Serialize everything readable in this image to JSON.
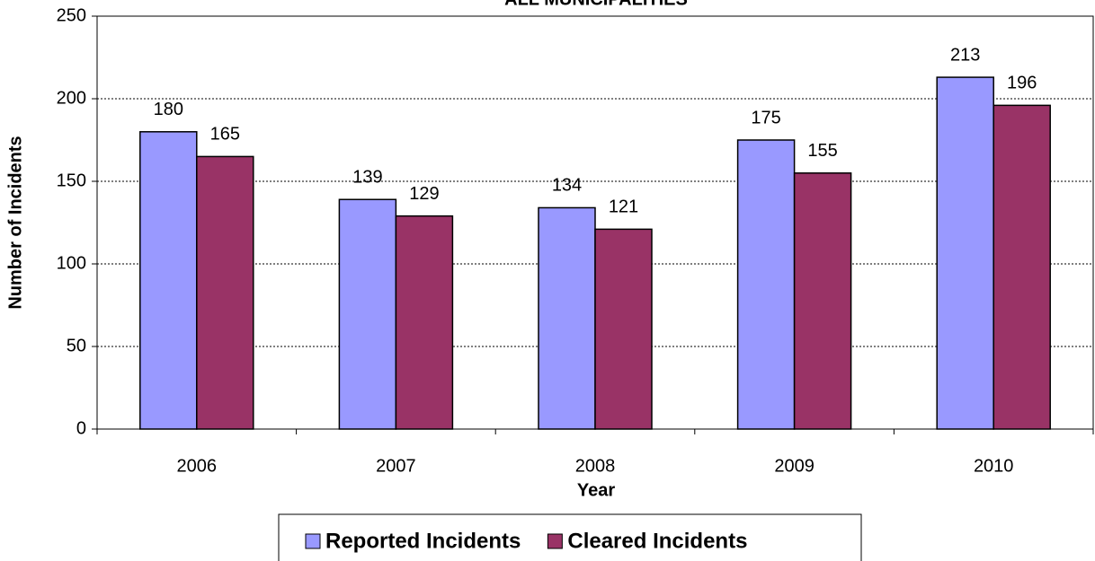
{
  "chart_data": {
    "type": "bar",
    "title": "ALL MUNICIPALITIES",
    "x_label": "Year",
    "y_label": "Number of Incidents",
    "categories": [
      "2006",
      "2007",
      "2008",
      "2009",
      "2010"
    ],
    "series": [
      {
        "name": "Reported Incidents",
        "color": "#9999ff",
        "values": [
          180,
          139,
          134,
          175,
          213
        ]
      },
      {
        "name": "Cleared Incidents",
        "color": "#993366",
        "values": [
          165,
          129,
          121,
          155,
          196
        ]
      }
    ],
    "ylim": [
      0,
      250
    ],
    "yticks": [
      0,
      50,
      100,
      150,
      200,
      250
    ],
    "grid": true,
    "legend": "bottom"
  }
}
